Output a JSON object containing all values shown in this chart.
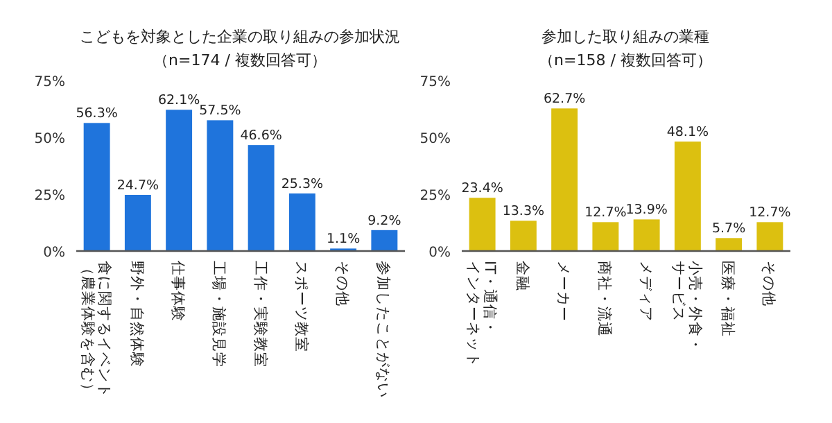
{
  "chart_data": [
    {
      "type": "bar",
      "title": "こどもを対象とした企業の取り組みの参加状況",
      "subtitle": "（n=174 / 複数回答可）",
      "categories": [
        "食に関するイベント（農業体験を含む）",
        "野外・自然体験",
        "仕事体験",
        "工場・施設見学",
        "工作・実験教室",
        "スポーツ教室",
        "その他",
        "参加したことがない"
      ],
      "values": [
        56.3,
        24.7,
        62.1,
        57.5,
        46.6,
        25.3,
        1.1,
        9.2
      ],
      "value_labels": [
        "56.3%",
        "24.7%",
        "62.1%",
        "57.5%",
        "46.6%",
        "25.3%",
        "1.1%",
        "9.2%"
      ],
      "color": "#1f74dc",
      "ylim": [
        0,
        75
      ],
      "yticks": [
        {
          "value": 0,
          "label": "0%"
        },
        {
          "value": 25,
          "label": "25%"
        },
        {
          "value": 50,
          "label": "50%"
        },
        {
          "value": 75,
          "label": "75%"
        }
      ],
      "grid": false
    },
    {
      "type": "bar",
      "title": "参加した取り組みの業種",
      "subtitle": "（n=158 / 複数回答可）",
      "categories": [
        "IT・通信・インターネット",
        "金融",
        "メーカー",
        "商社・流通",
        "メディア",
        "小売・外食・サービス",
        "医療・福祉",
        "その他"
      ],
      "values": [
        23.4,
        13.3,
        62.7,
        12.7,
        13.9,
        48.1,
        5.7,
        12.7
      ],
      "value_labels": [
        "23.4%",
        "13.3%",
        "62.7%",
        "12.7%",
        "13.9%",
        "48.1%",
        "5.7%",
        "12.7%"
      ],
      "color": "#dcc010",
      "ylim": [
        0,
        75
      ],
      "yticks": [
        {
          "value": 0,
          "label": "0%"
        },
        {
          "value": 25,
          "label": "25%"
        },
        {
          "value": 50,
          "label": "50%"
        },
        {
          "value": 75,
          "label": "75%"
        }
      ],
      "grid": false
    }
  ]
}
